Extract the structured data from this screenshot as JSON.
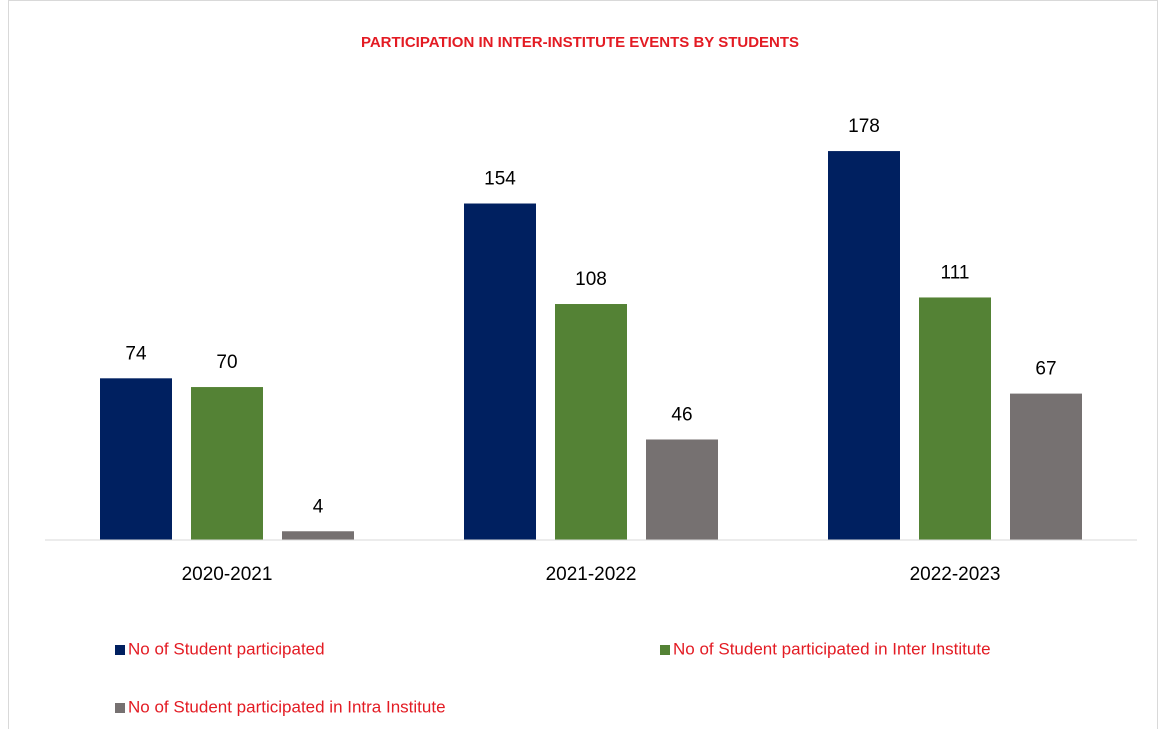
{
  "chart_data": {
    "type": "bar",
    "title": "PARTICIPATION IN INTER-INSTITUTE EVENTS BY STUDENTS",
    "categories": [
      "2020-2021",
      "2021-2022",
      "2022-2023"
    ],
    "series": [
      {
        "name": "No of Student participated",
        "color": "#002060",
        "values": [
          74,
          154,
          178
        ]
      },
      {
        "name": "No of Student participated in Inter Institute",
        "color": "#548235",
        "values": [
          70,
          108,
          111
        ]
      },
      {
        "name": "No of Student participated in Intra Institute",
        "color": "#767171",
        "values": [
          4,
          46,
          67
        ]
      }
    ],
    "ylim": [
      0,
      200
    ]
  }
}
